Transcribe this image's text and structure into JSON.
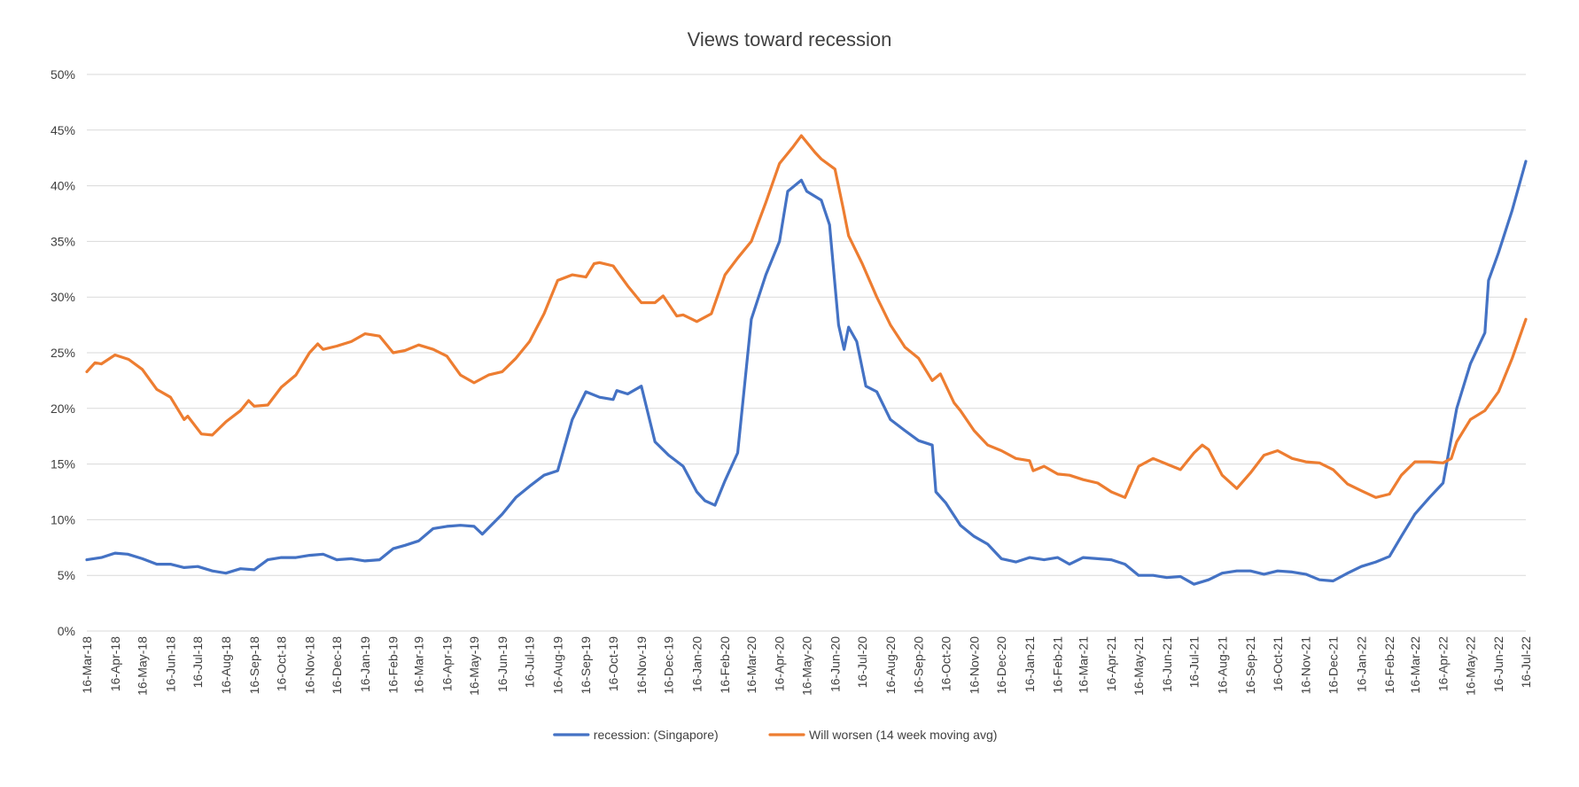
{
  "chart_data": {
    "type": "line",
    "title": "Views toward recession",
    "xlabel": "",
    "ylabel": "",
    "ylim": [
      0,
      50
    ],
    "y_ticks": [
      "0%",
      "5%",
      "10%",
      "15%",
      "20%",
      "25%",
      "30%",
      "35%",
      "40%",
      "45%",
      "50%"
    ],
    "grid": true,
    "legend_position": "bottom",
    "x_range": [
      "2018-03-16",
      "2022-07-16"
    ],
    "categories": [
      "16-Mar-18",
      "16-Apr-18",
      "16-May-18",
      "16-Jun-18",
      "16-Jul-18",
      "16-Aug-18",
      "16-Sep-18",
      "16-Oct-18",
      "16-Nov-18",
      "16-Dec-18",
      "16-Jan-19",
      "16-Feb-19",
      "16-Mar-19",
      "16-Apr-19",
      "16-May-19",
      "16-Jun-19",
      "16-Jul-19",
      "16-Aug-19",
      "16-Sep-19",
      "16-Oct-19",
      "16-Nov-19",
      "16-Dec-19",
      "16-Jan-20",
      "16-Feb-20",
      "16-Mar-20",
      "16-Apr-20",
      "16-May-20",
      "16-Jun-20",
      "16-Jul-20",
      "16-Aug-20",
      "16-Sep-20",
      "16-Oct-20",
      "16-Nov-20",
      "16-Dec-20",
      "16-Jan-21",
      "16-Feb-21",
      "16-Mar-21",
      "16-Apr-21",
      "16-May-21",
      "16-Jun-21",
      "16-Jul-21",
      "16-Aug-21",
      "16-Sep-21",
      "16-Oct-21",
      "16-Nov-21",
      "16-Dec-21",
      "16-Jan-22",
      "16-Feb-22",
      "16-Mar-22",
      "16-Apr-22",
      "16-May-22",
      "16-Jun-22",
      "16-Jul-22"
    ],
    "series": [
      {
        "name": "recession: (Singapore)",
        "color": "#4472C4",
        "points": [
          [
            "2018-03-16",
            6.4
          ],
          [
            "2018-04-01",
            6.6
          ],
          [
            "2018-04-16",
            7.0
          ],
          [
            "2018-04-30",
            6.9
          ],
          [
            "2018-05-16",
            6.5
          ],
          [
            "2018-06-01",
            6.0
          ],
          [
            "2018-06-16",
            6.0
          ],
          [
            "2018-07-01",
            5.7
          ],
          [
            "2018-07-16",
            5.8
          ],
          [
            "2018-08-01",
            5.4
          ],
          [
            "2018-08-16",
            5.2
          ],
          [
            "2018-09-01",
            5.6
          ],
          [
            "2018-09-16",
            5.5
          ],
          [
            "2018-10-01",
            6.4
          ],
          [
            "2018-10-16",
            6.6
          ],
          [
            "2018-11-01",
            6.6
          ],
          [
            "2018-11-16",
            6.8
          ],
          [
            "2018-12-01",
            6.9
          ],
          [
            "2018-12-16",
            6.4
          ],
          [
            "2019-01-01",
            6.5
          ],
          [
            "2019-01-16",
            6.3
          ],
          [
            "2019-02-01",
            6.4
          ],
          [
            "2019-02-16",
            7.4
          ],
          [
            "2019-03-01",
            7.7
          ],
          [
            "2019-03-16",
            8.1
          ],
          [
            "2019-04-01",
            9.2
          ],
          [
            "2019-04-16",
            9.4
          ],
          [
            "2019-05-01",
            9.5
          ],
          [
            "2019-05-16",
            9.4
          ],
          [
            "2019-05-25",
            8.7
          ],
          [
            "2019-06-16",
            10.5
          ],
          [
            "2019-07-01",
            12.0
          ],
          [
            "2019-07-16",
            13.0
          ],
          [
            "2019-08-01",
            14.0
          ],
          [
            "2019-08-16",
            14.4
          ],
          [
            "2019-09-01",
            19.0
          ],
          [
            "2019-09-16",
            21.5
          ],
          [
            "2019-10-01",
            21.0
          ],
          [
            "2019-10-16",
            20.8
          ],
          [
            "2019-10-20",
            21.6
          ],
          [
            "2019-11-01",
            21.3
          ],
          [
            "2019-11-16",
            22.0
          ],
          [
            "2019-12-01",
            17.0
          ],
          [
            "2019-12-16",
            15.8
          ],
          [
            "2020-01-01",
            14.8
          ],
          [
            "2020-01-16",
            12.5
          ],
          [
            "2020-01-25",
            11.7
          ],
          [
            "2020-02-05",
            11.3
          ],
          [
            "2020-02-16",
            13.5
          ],
          [
            "2020-03-01",
            16.0
          ],
          [
            "2020-03-16",
            28.0
          ],
          [
            "2020-04-01",
            32.0
          ],
          [
            "2020-04-16",
            35.0
          ],
          [
            "2020-04-25",
            39.5
          ],
          [
            "2020-05-10",
            40.5
          ],
          [
            "2020-05-16",
            39.5
          ],
          [
            "2020-06-01",
            38.7
          ],
          [
            "2020-06-10",
            36.5
          ],
          [
            "2020-06-20",
            27.5
          ],
          [
            "2020-06-26",
            25.3
          ],
          [
            "2020-07-01",
            27.3
          ],
          [
            "2020-07-10",
            26.0
          ],
          [
            "2020-07-20",
            22.0
          ],
          [
            "2020-08-01",
            21.5
          ],
          [
            "2020-08-16",
            19.0
          ],
          [
            "2020-09-01",
            18.0
          ],
          [
            "2020-09-16",
            17.1
          ],
          [
            "2020-10-01",
            16.7
          ],
          [
            "2020-10-05",
            12.5
          ],
          [
            "2020-10-16",
            11.5
          ],
          [
            "2020-11-01",
            9.5
          ],
          [
            "2020-11-16",
            8.5
          ],
          [
            "2020-12-01",
            7.8
          ],
          [
            "2020-12-16",
            6.5
          ],
          [
            "2021-01-01",
            6.2
          ],
          [
            "2021-01-16",
            6.6
          ],
          [
            "2021-02-01",
            6.4
          ],
          [
            "2021-02-16",
            6.6
          ],
          [
            "2021-03-01",
            6.0
          ],
          [
            "2021-03-16",
            6.6
          ],
          [
            "2021-04-01",
            6.5
          ],
          [
            "2021-04-16",
            6.4
          ],
          [
            "2021-05-01",
            6.0
          ],
          [
            "2021-05-16",
            5.0
          ],
          [
            "2021-06-01",
            5.0
          ],
          [
            "2021-06-16",
            4.8
          ],
          [
            "2021-07-01",
            4.9
          ],
          [
            "2021-07-16",
            4.2
          ],
          [
            "2021-08-01",
            4.6
          ],
          [
            "2021-08-16",
            5.2
          ],
          [
            "2021-09-01",
            5.4
          ],
          [
            "2021-09-16",
            5.4
          ],
          [
            "2021-10-01",
            5.1
          ],
          [
            "2021-10-16",
            5.4
          ],
          [
            "2021-11-01",
            5.3
          ],
          [
            "2021-11-16",
            5.1
          ],
          [
            "2021-12-01",
            4.6
          ],
          [
            "2021-12-16",
            4.5
          ],
          [
            "2022-01-01",
            5.2
          ],
          [
            "2022-01-16",
            5.8
          ],
          [
            "2022-02-01",
            6.2
          ],
          [
            "2022-02-16",
            6.7
          ],
          [
            "2022-03-01",
            8.5
          ],
          [
            "2022-03-16",
            10.5
          ],
          [
            "2022-04-01",
            12.0
          ],
          [
            "2022-04-16",
            13.3
          ],
          [
            "2022-05-01",
            20.0
          ],
          [
            "2022-05-16",
            24.0
          ],
          [
            "2022-06-01",
            26.8
          ],
          [
            "2022-06-05",
            31.5
          ],
          [
            "2022-06-16",
            34.0
          ],
          [
            "2022-07-01",
            37.8
          ],
          [
            "2022-07-16",
            42.2
          ]
        ]
      },
      {
        "name": "Will worsen (14 week moving avg)",
        "color": "#ED7D31",
        "points": [
          [
            "2018-03-16",
            23.3
          ],
          [
            "2018-03-25",
            24.1
          ],
          [
            "2018-04-01",
            24.0
          ],
          [
            "2018-04-16",
            24.8
          ],
          [
            "2018-05-01",
            24.4
          ],
          [
            "2018-05-16",
            23.5
          ],
          [
            "2018-06-01",
            21.7
          ],
          [
            "2018-06-16",
            21.0
          ],
          [
            "2018-07-01",
            19.0
          ],
          [
            "2018-07-05",
            19.3
          ],
          [
            "2018-07-20",
            17.7
          ],
          [
            "2018-08-01",
            17.6
          ],
          [
            "2018-08-16",
            18.8
          ],
          [
            "2018-09-01",
            19.8
          ],
          [
            "2018-09-10",
            20.7
          ],
          [
            "2018-09-16",
            20.2
          ],
          [
            "2018-10-01",
            20.3
          ],
          [
            "2018-10-16",
            21.9
          ],
          [
            "2018-11-01",
            23.0
          ],
          [
            "2018-11-16",
            25.0
          ],
          [
            "2018-11-25",
            25.8
          ],
          [
            "2018-12-01",
            25.3
          ],
          [
            "2018-12-16",
            25.6
          ],
          [
            "2019-01-01",
            26.0
          ],
          [
            "2019-01-16",
            26.7
          ],
          [
            "2019-02-01",
            26.5
          ],
          [
            "2019-02-16",
            25.0
          ],
          [
            "2019-03-01",
            25.2
          ],
          [
            "2019-03-16",
            25.7
          ],
          [
            "2019-04-01",
            25.3
          ],
          [
            "2019-04-16",
            24.7
          ],
          [
            "2019-05-01",
            23.0
          ],
          [
            "2019-05-16",
            22.3
          ],
          [
            "2019-06-01",
            23.0
          ],
          [
            "2019-06-16",
            23.3
          ],
          [
            "2019-07-01",
            24.5
          ],
          [
            "2019-07-16",
            26.0
          ],
          [
            "2019-08-01",
            28.5
          ],
          [
            "2019-08-16",
            31.5
          ],
          [
            "2019-09-01",
            32.0
          ],
          [
            "2019-09-16",
            31.8
          ],
          [
            "2019-09-25",
            33.0
          ],
          [
            "2019-10-01",
            33.1
          ],
          [
            "2019-10-16",
            32.8
          ],
          [
            "2019-11-01",
            31.0
          ],
          [
            "2019-11-16",
            29.5
          ],
          [
            "2019-12-01",
            29.5
          ],
          [
            "2019-12-10",
            30.1
          ],
          [
            "2019-12-25",
            28.3
          ],
          [
            "2020-01-01",
            28.4
          ],
          [
            "2020-01-16",
            27.8
          ],
          [
            "2020-02-01",
            28.5
          ],
          [
            "2020-02-16",
            32.0
          ],
          [
            "2020-03-01",
            33.5
          ],
          [
            "2020-03-16",
            35.0
          ],
          [
            "2020-04-01",
            38.5
          ],
          [
            "2020-04-16",
            42.0
          ],
          [
            "2020-05-01",
            43.5
          ],
          [
            "2020-05-10",
            44.5
          ],
          [
            "2020-05-25",
            43.0
          ],
          [
            "2020-06-01",
            42.4
          ],
          [
            "2020-06-16",
            41.5
          ],
          [
            "2020-06-25",
            38.0
          ],
          [
            "2020-07-01",
            35.5
          ],
          [
            "2020-07-16",
            33.0
          ],
          [
            "2020-08-01",
            30.0
          ],
          [
            "2020-08-16",
            27.5
          ],
          [
            "2020-09-01",
            25.5
          ],
          [
            "2020-09-16",
            24.5
          ],
          [
            "2020-10-01",
            22.5
          ],
          [
            "2020-10-10",
            23.1
          ],
          [
            "2020-10-25",
            20.5
          ],
          [
            "2020-11-01",
            19.8
          ],
          [
            "2020-11-16",
            18.0
          ],
          [
            "2020-12-01",
            16.7
          ],
          [
            "2020-12-16",
            16.2
          ],
          [
            "2021-01-01",
            15.5
          ],
          [
            "2021-01-16",
            15.3
          ],
          [
            "2021-01-20",
            14.4
          ],
          [
            "2021-02-01",
            14.8
          ],
          [
            "2021-02-16",
            14.1
          ],
          [
            "2021-03-01",
            14.0
          ],
          [
            "2021-03-16",
            13.6
          ],
          [
            "2021-04-01",
            13.3
          ],
          [
            "2021-04-16",
            12.5
          ],
          [
            "2021-05-01",
            12.0
          ],
          [
            "2021-05-16",
            14.8
          ],
          [
            "2021-06-01",
            15.5
          ],
          [
            "2021-06-16",
            15.0
          ],
          [
            "2021-07-01",
            14.5
          ],
          [
            "2021-07-16",
            16.0
          ],
          [
            "2021-07-25",
            16.7
          ],
          [
            "2021-08-01",
            16.3
          ],
          [
            "2021-08-16",
            14.0
          ],
          [
            "2021-09-01",
            12.8
          ],
          [
            "2021-09-16",
            14.2
          ],
          [
            "2021-10-01",
            15.8
          ],
          [
            "2021-10-16",
            16.2
          ],
          [
            "2021-11-01",
            15.5
          ],
          [
            "2021-11-16",
            15.2
          ],
          [
            "2021-12-01",
            15.1
          ],
          [
            "2021-12-16",
            14.5
          ],
          [
            "2022-01-01",
            13.2
          ],
          [
            "2022-01-16",
            12.6
          ],
          [
            "2022-02-01",
            12.0
          ],
          [
            "2022-02-16",
            12.3
          ],
          [
            "2022-03-01",
            14.0
          ],
          [
            "2022-03-16",
            15.2
          ],
          [
            "2022-04-01",
            15.2
          ],
          [
            "2022-04-16",
            15.1
          ],
          [
            "2022-04-25",
            15.5
          ],
          [
            "2022-05-01",
            17.0
          ],
          [
            "2022-05-16",
            19.0
          ],
          [
            "2022-06-01",
            19.8
          ],
          [
            "2022-06-16",
            21.5
          ],
          [
            "2022-07-01",
            24.5
          ],
          [
            "2022-07-16",
            28.0
          ]
        ]
      }
    ]
  }
}
